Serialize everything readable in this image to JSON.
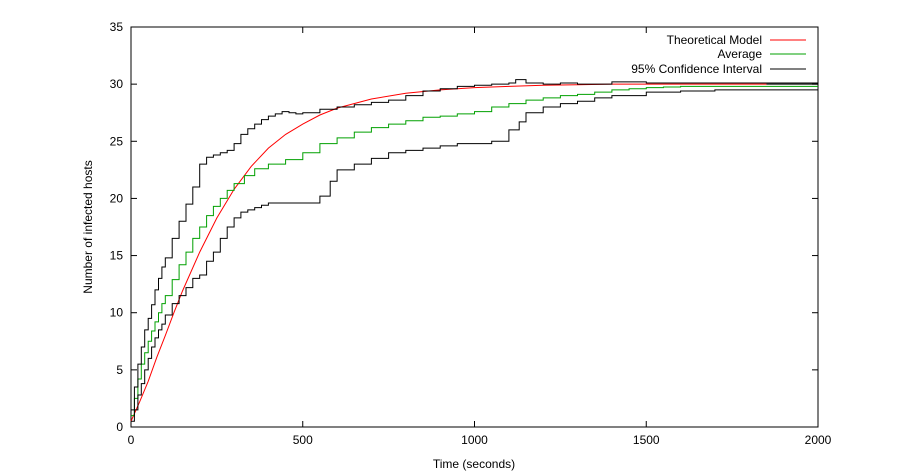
{
  "chart_data": {
    "type": "line",
    "xlabel": "Time (seconds)",
    "ylabel": "Number of infected hosts",
    "xlim": [
      0,
      2000
    ],
    "ylim": [
      0,
      35
    ],
    "xticks": [
      0,
      500,
      1000,
      1500,
      2000
    ],
    "yticks": [
      0,
      5,
      10,
      15,
      20,
      25,
      30,
      35
    ],
    "grid": false,
    "legend_position": "top-right",
    "series": [
      {
        "name": "Theoretical Model",
        "color": "#ff0000",
        "style": "smooth",
        "x": [
          0,
          25,
          50,
          75,
          100,
          125,
          150,
          200,
          250,
          300,
          350,
          400,
          450,
          500,
          550,
          600,
          700,
          800,
          900,
          1000,
          1100,
          1200,
          1300,
          1400,
          1500,
          1600,
          1700,
          1850
        ],
        "y": [
          0.5,
          2.2,
          4.0,
          6.1,
          8.0,
          10.0,
          11.9,
          15.3,
          18.3,
          20.8,
          22.8,
          24.4,
          25.6,
          26.5,
          27.3,
          27.9,
          28.7,
          29.2,
          29.5,
          29.7,
          29.8,
          29.9,
          29.95,
          30.0,
          30.0,
          30.0,
          30.0,
          30.0
        ]
      },
      {
        "name": "Average",
        "color": "#00a000",
        "style": "step",
        "x": [
          0,
          10,
          20,
          30,
          40,
          50,
          60,
          70,
          80,
          90,
          100,
          120,
          140,
          160,
          180,
          200,
          220,
          240,
          260,
          280,
          300,
          330,
          360,
          400,
          450,
          500,
          550,
          600,
          650,
          700,
          750,
          800,
          850,
          900,
          950,
          1000,
          1050,
          1100,
          1150,
          1200,
          1250,
          1300,
          1350,
          1400,
          1450,
          1500,
          1550,
          1600,
          1700,
          1800,
          1850
        ],
        "y": [
          1.0,
          2.5,
          4.2,
          5.5,
          6.5,
          7.5,
          8.4,
          9.2,
          10.0,
          10.8,
          11.5,
          12.9,
          14.2,
          15.3,
          16.5,
          17.5,
          18.5,
          19.3,
          20.0,
          20.7,
          21.3,
          22.0,
          22.6,
          23.0,
          23.4,
          24.0,
          24.8,
          25.3,
          25.8,
          26.2,
          26.5,
          26.8,
          27.1,
          27.2,
          27.4,
          27.6,
          28.0,
          28.3,
          28.6,
          28.8,
          29.0,
          29.1,
          29.3,
          29.5,
          29.6,
          29.7,
          29.75,
          29.8,
          29.8,
          29.8,
          29.8
        ]
      },
      {
        "name": "95% Confidence Interval",
        "color": "#000000",
        "style": "step",
        "x": [
          0,
          10,
          20,
          30,
          40,
          50,
          60,
          70,
          80,
          90,
          100,
          120,
          140,
          160,
          180,
          200,
          220,
          240,
          260,
          280,
          300,
          320,
          340,
          360,
          380,
          400,
          420,
          440,
          460,
          480,
          500,
          550,
          600,
          650,
          700,
          750,
          800,
          850,
          900,
          950,
          1000,
          1050,
          1100,
          1120,
          1150,
          1200,
          1250,
          1300,
          1400,
          1500,
          1600,
          1700,
          1850
        ],
        "y": [
          1.5,
          3.5,
          5.5,
          7.0,
          8.5,
          9.5,
          10.7,
          12.0,
          13.0,
          14.0,
          14.8,
          16.5,
          18.0,
          19.5,
          21.0,
          23.0,
          23.6,
          23.8,
          24.0,
          24.2,
          24.8,
          25.6,
          26.1,
          26.5,
          26.9,
          27.2,
          27.4,
          27.6,
          27.5,
          27.4,
          27.5,
          27.8,
          28.0,
          28.2,
          28.4,
          28.6,
          29.0,
          29.4,
          29.6,
          29.8,
          29.9,
          30.0,
          30.1,
          30.4,
          30.1,
          30.0,
          30.1,
          30.0,
          30.2,
          30.1,
          30.1,
          30.1,
          30.1
        ]
      },
      {
        "name": "",
        "color": "#000000",
        "style": "step",
        "x": [
          0,
          10,
          20,
          30,
          40,
          50,
          60,
          70,
          80,
          90,
          100,
          120,
          140,
          160,
          180,
          200,
          220,
          240,
          260,
          280,
          300,
          320,
          340,
          360,
          380,
          400,
          420,
          450,
          500,
          550,
          580,
          600,
          650,
          700,
          750,
          800,
          850,
          900,
          950,
          1000,
          1050,
          1100,
          1130,
          1150,
          1200,
          1250,
          1300,
          1350,
          1400,
          1500,
          1600,
          1700,
          1850
        ],
        "y": [
          0.5,
          1.5,
          2.8,
          3.8,
          5.0,
          6.0,
          7.0,
          7.8,
          8.5,
          9.0,
          9.8,
          10.8,
          11.5,
          12.2,
          13.0,
          13.3,
          14.5,
          15.3,
          16.5,
          17.5,
          18.3,
          18.8,
          19.0,
          19.2,
          19.4,
          19.6,
          19.6,
          19.6,
          19.6,
          20.2,
          21.5,
          22.5,
          23.0,
          23.5,
          24.0,
          24.2,
          24.4,
          24.6,
          24.8,
          24.8,
          25.0,
          26.0,
          26.7,
          27.5,
          28.0,
          28.3,
          28.5,
          28.8,
          29.0,
          29.3,
          29.4,
          29.5,
          29.5
        ]
      }
    ]
  }
}
